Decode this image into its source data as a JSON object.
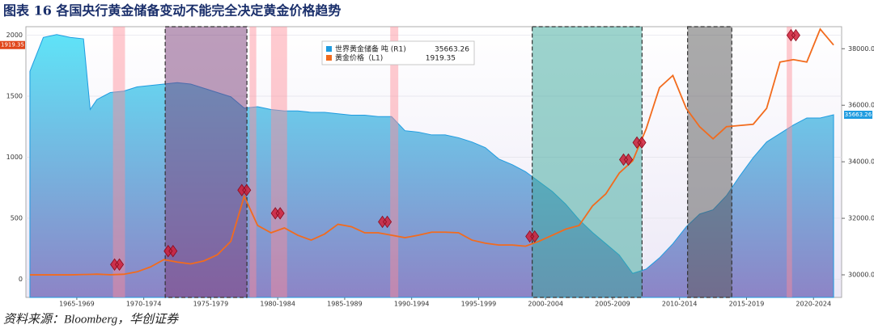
{
  "chart_data": {
    "type": "area_line",
    "title": "图表 16 各国央行黄金储备变动不能完全决定黄金价格趋势",
    "source": "资料来源：Bloomberg，华创证券",
    "x": [
      1964,
      1965,
      1966,
      1967,
      1968,
      1968.5,
      1969,
      1970,
      1971,
      1972,
      1973,
      1974,
      1975,
      1976,
      1977,
      1978,
      1979,
      1980,
      1981,
      1982,
      1983,
      1984,
      1985,
      1986,
      1987,
      1988,
      1989,
      1990,
      1991,
      1992,
      1993,
      1994,
      1995,
      1996,
      1997,
      1998,
      1999,
      2000,
      2001,
      2002,
      2003,
      2004,
      2005,
      2006,
      2007,
      2008,
      2009,
      2010,
      2011,
      2012,
      2013,
      2014,
      2015,
      2016,
      2017,
      2018,
      2019,
      2020,
      2021,
      2022,
      2023,
      2024
    ],
    "series": [
      {
        "name": "世界黄金储备 吨 (R1)",
        "color": "#1f9ce0",
        "axis": "y2",
        "values": [
          37200,
          38400,
          38500,
          38400,
          38350,
          35850,
          36200,
          36450,
          36500,
          36650,
          36700,
          36750,
          36800,
          36750,
          36600,
          36450,
          36300,
          35900,
          35950,
          35850,
          35800,
          35800,
          35750,
          35750,
          35700,
          35650,
          35650,
          35600,
          35600,
          35100,
          35050,
          34950,
          34950,
          34850,
          34700,
          34500,
          34100,
          33900,
          33650,
          33300,
          32950,
          32500,
          31950,
          31500,
          31100,
          30700,
          30050,
          30200,
          30600,
          31100,
          31700,
          32150,
          32300,
          32800,
          33500,
          34150,
          34700,
          35000,
          35300,
          35550,
          35550,
          35663.26
        ]
      },
      {
        "name": "黄金价格（L1)",
        "color": "#f26b1d",
        "values": [
          35,
          35,
          35,
          35,
          38,
          39,
          41,
          36,
          40,
          60,
          100,
          160,
          140,
          125,
          150,
          200,
          310,
          680,
          440,
          380,
          420,
          360,
          320,
          370,
          450,
          430,
          380,
          380,
          360,
          340,
          360,
          385,
          385,
          380,
          320,
          295,
          280,
          280,
          270,
          310,
          360,
          410,
          440,
          600,
          700,
          870,
          970,
          1230,
          1570,
          1670,
          1400,
          1250,
          1150,
          1250,
          1260,
          1270,
          1400,
          1780,
          1800,
          1780,
          2050,
          1919.35
        ]
      }
    ],
    "events": {
      "color": "#d0203a",
      "x": [
        1970.5,
        1974.5,
        1980,
        1982.5,
        1990.5,
        2001.5,
        2008.5,
        2009.5,
        2021
      ],
      "values": [
        120,
        230,
        730,
        540,
        470,
        350,
        980,
        1120,
        2000
      ]
    },
    "shaded_periods": [
      {
        "x": [
          1970.2,
          1971.1
        ],
        "color": "#ff8c96"
      },
      {
        "x": [
          1980.4,
          1980.9
        ],
        "color": "#ff8c96"
      },
      {
        "x": [
          1982,
          1983.2
        ],
        "color": "#ff8c96"
      },
      {
        "x": [
          1990.9,
          1991.5
        ],
        "color": "#ff8c96"
      },
      {
        "x": [
          2020.5,
          2020.9
        ],
        "color": "#ff8c96"
      },
      {
        "x": [
          1974.1,
          1980.2
        ],
        "color": "#7a3c78",
        "dashed": true
      },
      {
        "x": [
          2001.5,
          2009.7
        ],
        "color": "#3aa89a",
        "dashed": true
      },
      {
        "x": [
          2013.1,
          2016.4
        ],
        "color": "#555555",
        "dashed": true
      }
    ],
    "xlim": [
      1963.7,
      2024.6
    ],
    "xticks": [
      {
        "value": 1967.5,
        "label": "1965-1969"
      },
      {
        "value": 1972.5,
        "label": "1970-1974"
      },
      {
        "value": 1977.5,
        "label": "1975-1979"
      },
      {
        "value": 1982.5,
        "label": "1980-1984"
      },
      {
        "value": 1987.5,
        "label": "1985-1989"
      },
      {
        "value": 1992.5,
        "label": "1990-1994"
      },
      {
        "value": 1997.5,
        "label": "1995-1999"
      },
      {
        "value": 2002.5,
        "label": "2000-2004"
      },
      {
        "value": 2007.5,
        "label": "2005-2009"
      },
      {
        "value": 2012.5,
        "label": "2010-2014"
      },
      {
        "value": 2017.5,
        "label": "2015-2019"
      },
      {
        "value": 2022.5,
        "label": "2020-2024"
      }
    ],
    "ylim": [
      -150,
      2070
    ],
    "yticks": [
      0,
      500,
      1000,
      1500,
      2000
    ],
    "y2lim": [
      29200,
      38780
    ],
    "y2ticks": [
      {
        "value": 30000,
        "label": "30000.00"
      },
      {
        "value": 32000,
        "label": "32000.00"
      },
      {
        "value": 34000,
        "label": "34000.00"
      },
      {
        "value": 36000,
        "label": "36000.00"
      },
      {
        "value": 38000,
        "label": "38000.00"
      }
    ],
    "grid": true
  }
}
